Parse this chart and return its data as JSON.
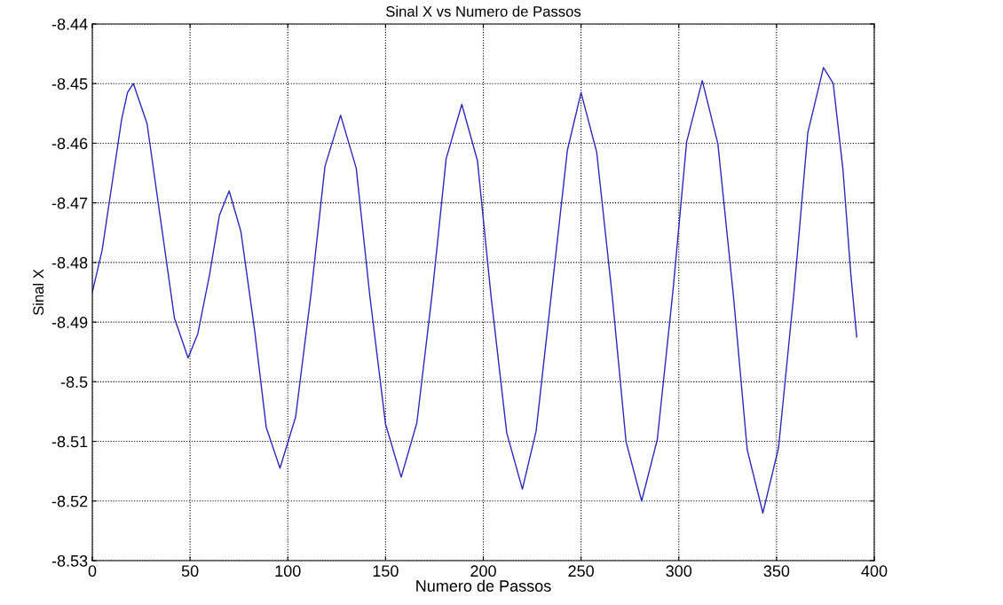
{
  "chart_data": {
    "type": "line",
    "title": "Sinal X vs Numero de Passos",
    "xlabel": "Numero de Passos",
    "ylabel": "Sinal X",
    "x": [
      0,
      5,
      10,
      15,
      18,
      21,
      28,
      35,
      42,
      49,
      54,
      60,
      65,
      70,
      76,
      83,
      89,
      96,
      104,
      112,
      119,
      127,
      135,
      142,
      150,
      158,
      166,
      174,
      181,
      189,
      197,
      204,
      212,
      220,
      227,
      235,
      243,
      250,
      258,
      266,
      273,
      281,
      289,
      297,
      304,
      312,
      320,
      328,
      335,
      343,
      351,
      359,
      366,
      374,
      379,
      384,
      388,
      391
    ],
    "series": [
      {
        "color": "#2a2ab8",
        "values": [
          -8.485,
          -8.478,
          -8.467,
          -8.456,
          -8.4515,
          -8.45,
          -8.4567,
          -8.473,
          -8.4893,
          -8.496,
          -8.4919,
          -8.482,
          -8.4721,
          -8.468,
          -8.4748,
          -8.4913,
          -8.5077,
          -8.5145,
          -8.5059,
          -8.4849,
          -8.4639,
          -8.4553,
          -8.4642,
          -8.4857,
          -8.5071,
          -8.516,
          -8.5069,
          -8.4848,
          -8.4626,
          -8.4535,
          -8.4629,
          -8.4858,
          -8.5086,
          -8.518,
          -8.5083,
          -8.4848,
          -8.4612,
          -8.4515,
          -8.4615,
          -8.4858,
          -8.51,
          -8.52,
          -8.5097,
          -8.4848,
          -8.4598,
          -8.4495,
          -8.4601,
          -8.4858,
          -8.5114,
          -8.522,
          -8.5111,
          -8.4847,
          -8.4582,
          -8.4473,
          -8.45,
          -8.4645,
          -8.482,
          -8.4925
        ]
      }
    ],
    "xlim": [
      0,
      400
    ],
    "xticks": [
      0,
      50,
      100,
      150,
      200,
      250,
      300,
      350,
      400
    ],
    "ylim": [
      -8.53,
      -8.44
    ],
    "yticks": [
      {
        "value": -8.53,
        "label": "-8.53"
      },
      {
        "value": -8.52,
        "label": "-8.52"
      },
      {
        "value": -8.51,
        "label": "-8.51"
      },
      {
        "value": -8.5,
        "label": "-8.5"
      },
      {
        "value": -8.49,
        "label": "-8.49"
      },
      {
        "value": -8.48,
        "label": "-8.48"
      },
      {
        "value": -8.47,
        "label": "-8.47"
      },
      {
        "value": -8.46,
        "label": "-8.46"
      },
      {
        "value": -8.45,
        "label": "-8.45"
      },
      {
        "value": -8.44,
        "label": "-8.44"
      }
    ],
    "grid": true,
    "line_style": "solid",
    "marker": "none"
  }
}
